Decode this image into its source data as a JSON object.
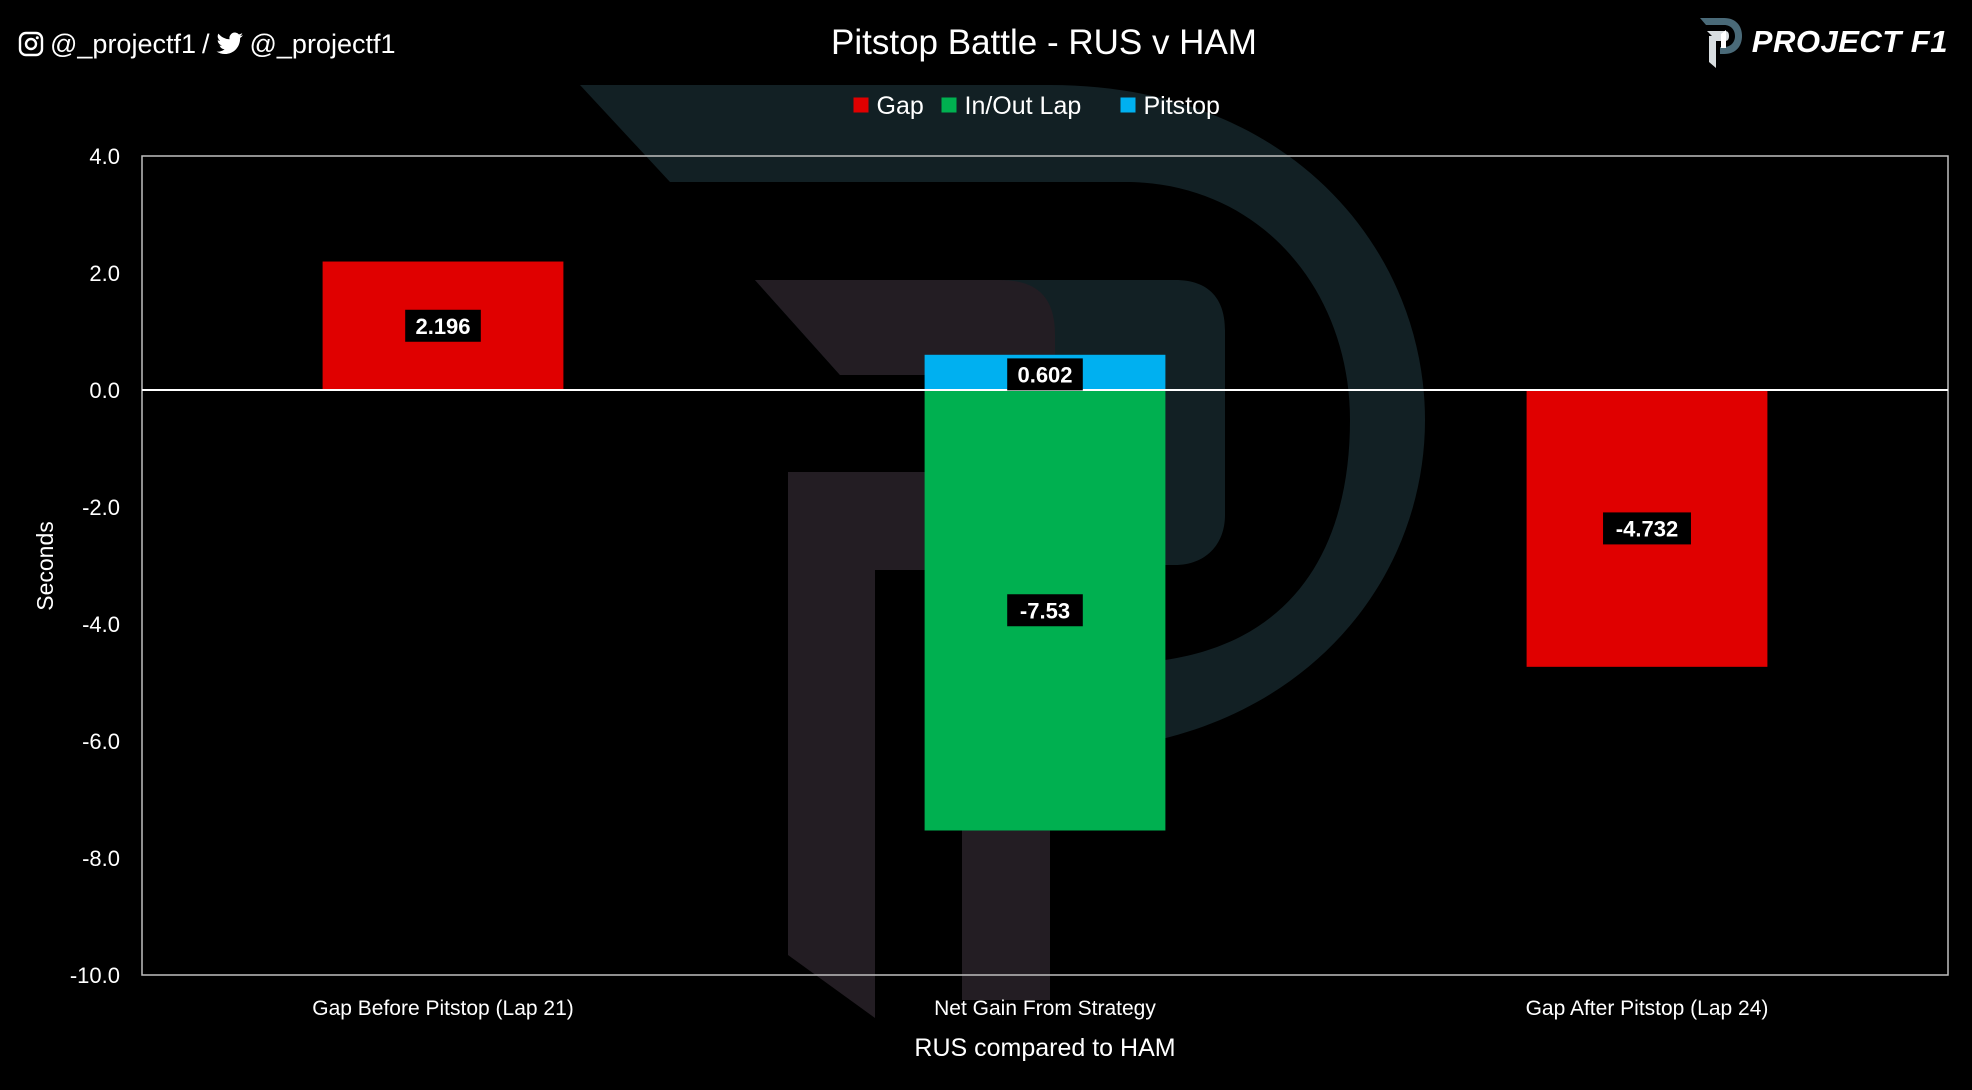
{
  "header": {
    "instagram_handle": "@_projectf1",
    "separator": "/",
    "twitter_handle": "@_projectf1",
    "brand": "PROJECT F1"
  },
  "chart_data": {
    "type": "bar",
    "stacked": true,
    "title": "Pitstop Battle - RUS v HAM",
    "xlabel": "RUS compared to HAM",
    "ylabel": "Seconds",
    "ylim": [
      -10,
      4
    ],
    "yticks": [
      4,
      2,
      0,
      -2,
      -4,
      -6,
      -8,
      -10
    ],
    "ytick_labels": [
      "4.0",
      "2.0",
      "0.0",
      "-2.0",
      "-4.0",
      "-6.0",
      "-8.0",
      "-10.0"
    ],
    "categories": [
      "Gap Before Pitstop (Lap 21)",
      "Net Gain From Strategy",
      "Gap After Pitstop (Lap 24)"
    ],
    "series": [
      {
        "name": "Gap",
        "color": "#e00000",
        "values": [
          2.196,
          null,
          -4.732
        ],
        "labels": [
          "2.196",
          "",
          "-4.732"
        ]
      },
      {
        "name": "In/Out Lap",
        "color": "#00b050",
        "values": [
          null,
          -7.53,
          null
        ],
        "labels": [
          "",
          "-7.53",
          ""
        ]
      },
      {
        "name": "Pitstop",
        "color": "#00b0f0",
        "values": [
          null,
          0.602,
          null
        ],
        "labels": [
          "",
          "0.602",
          ""
        ]
      }
    ],
    "legend_position": "top-center",
    "grid": false,
    "colors": {
      "background": "#000000",
      "axis": "#bfbfbf",
      "zero_line": "#ffffff",
      "watermark": "#231d23",
      "watermark_accent": "#122024"
    }
  }
}
